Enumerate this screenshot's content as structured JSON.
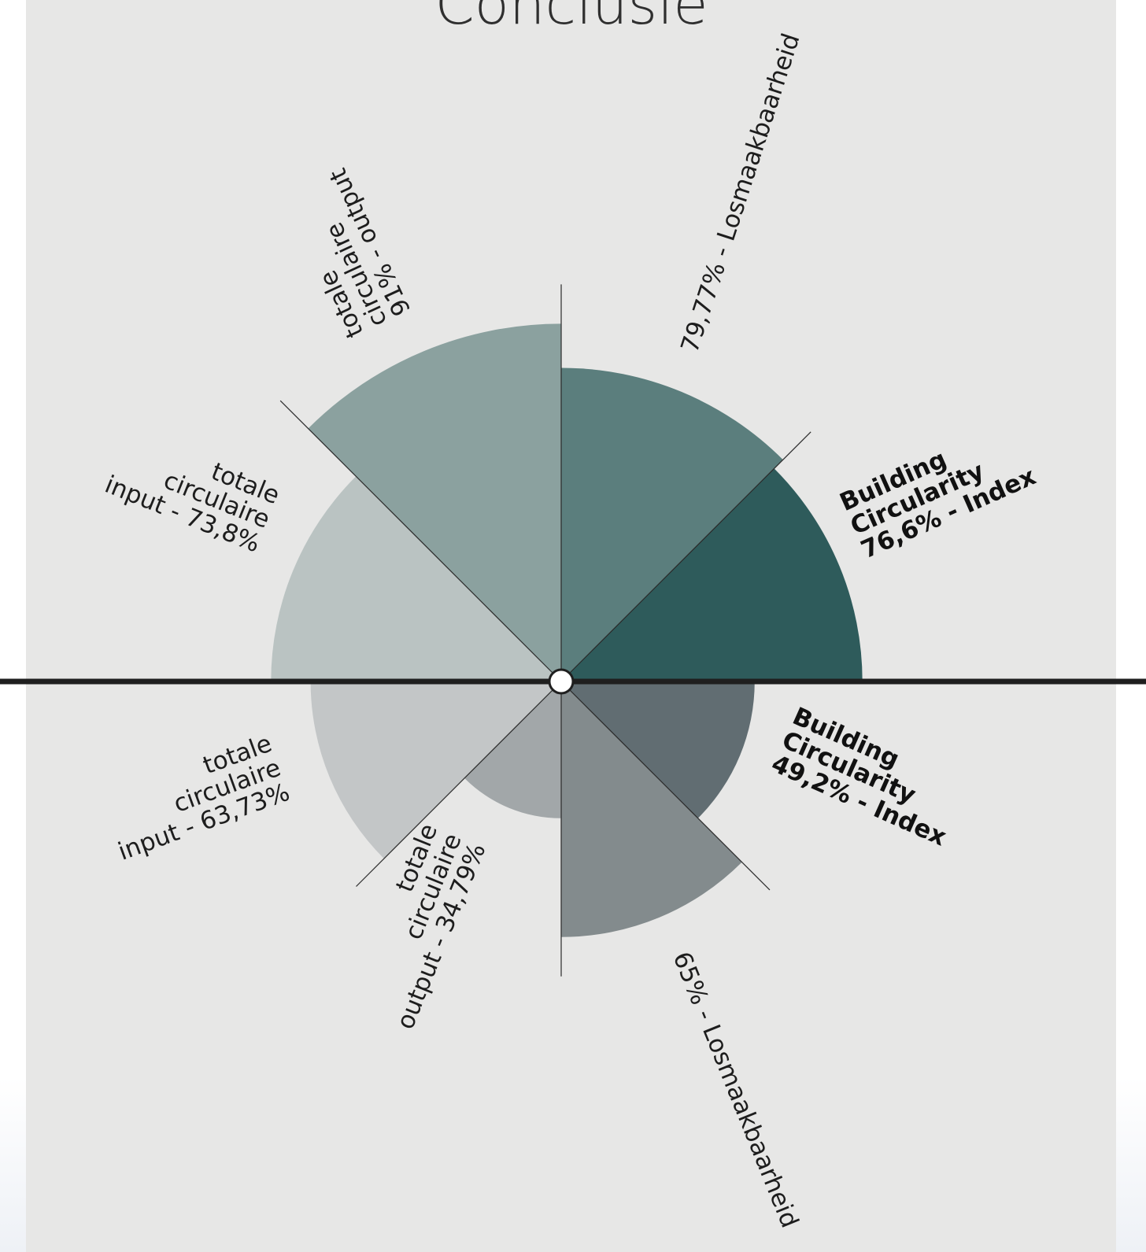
{
  "page": {
    "title": "Conclusie"
  },
  "chart_data": [
    {
      "type": "polar-area",
      "half": "top",
      "segments": [
        {
          "value": 76.6,
          "value_text": "76,6%",
          "name_lines": [
            "Building",
            "Circularity",
            "Index"
          ],
          "bold": true,
          "color": "#2e5b5b"
        },
        {
          "value": 79.77,
          "value_text": "79,77%",
          "name_lines": [
            "Losmaakbaarheid"
          ],
          "bold": false,
          "color": "#5b7e7d"
        },
        {
          "value": 91,
          "value_text": "91%",
          "name_lines": [
            "totale",
            "circulaire",
            "output"
          ],
          "bold": false,
          "color": "#8ba19f"
        },
        {
          "value": 73.8,
          "value_text": "73,8%",
          "name_lines": [
            "totale",
            "circulaire",
            "input"
          ],
          "bold": false,
          "color": "#bac3c2"
        }
      ]
    },
    {
      "type": "polar-area",
      "half": "bottom",
      "segments": [
        {
          "value": 49.2,
          "value_text": "49,2%",
          "name_lines": [
            "Building",
            "Circularity",
            "Index"
          ],
          "bold": true,
          "color": "#616d72"
        },
        {
          "value": 65,
          "value_text": "65%",
          "name_lines": [
            "Losmaakbaarheid"
          ],
          "bold": false,
          "color": "#838b8d"
        },
        {
          "value": 34.79,
          "value_text": "34,79%",
          "name_lines": [
            "totale",
            "circulaire",
            "output"
          ],
          "bold": false,
          "color": "#a2a7a9"
        },
        {
          "value": 63.73,
          "value_text": "63,73%",
          "name_lines": [
            "totale",
            "circulaire",
            "input"
          ],
          "bold": false,
          "color": "#c3c6c7"
        }
      ]
    }
  ]
}
